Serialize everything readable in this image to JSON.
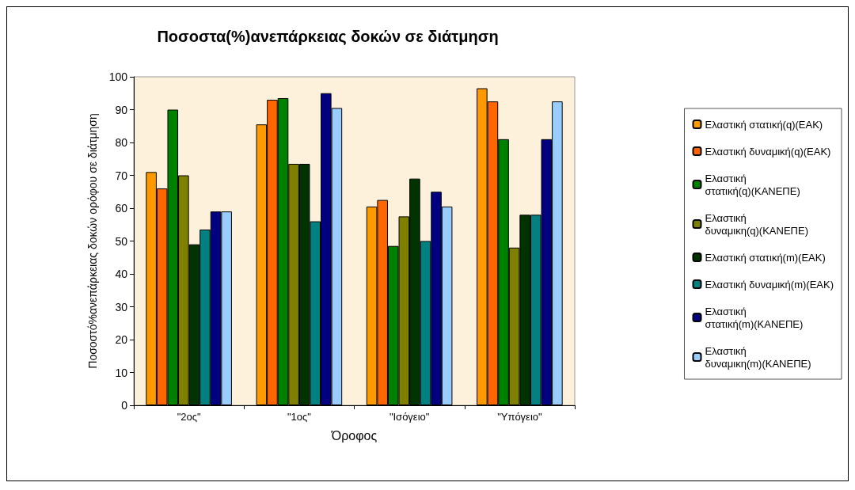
{
  "chart_data": {
    "type": "bar",
    "title": "Ποσοστα(%)ανεπάρκειας δοκών σε διάτμηση",
    "xlabel": "Όροφος",
    "ylabel": "Ποσοστό%ανεπάρκειας δοκών ορόφου σε διάτμηση",
    "categories": [
      "\"2ος\"",
      "\"1ος\"",
      "\"Ισόγειο\"",
      "\"Υπόγειο\""
    ],
    "series": [
      {
        "name": "Ελαστική στατική(q)(ΕΑΚ)",
        "color": "#ff9900",
        "values": [
          71,
          85.5,
          60.5,
          96.5
        ]
      },
      {
        "name": "Ελαστική δυναμική(q)(ΕΑΚ)",
        "color": "#ff6600",
        "values": [
          66,
          93,
          62.5,
          92.5
        ]
      },
      {
        "name": "Ελαστική\nστατική(q)(ΚΑΝΕΠΕ)",
        "color": "#008000",
        "values": [
          90,
          93.5,
          48.5,
          81
        ]
      },
      {
        "name": "Ελαστική\nδυναμικη(q)(ΚΑΝΕΠΕ)",
        "color": "#808000",
        "values": [
          70,
          73.5,
          57.5,
          48
        ]
      },
      {
        "name": "Ελαστική στατική(m)(ΕΑΚ)",
        "color": "#003300",
        "values": [
          49,
          73.5,
          69,
          58
        ]
      },
      {
        "name": "Ελαστική δυναμική(m)(ΕΑΚ)",
        "color": "#008080",
        "values": [
          53.5,
          56,
          50,
          58
        ]
      },
      {
        "name": "Ελαστική\nστατική(m)(ΚΑΝΕΠΕ)",
        "color": "#000080",
        "values": [
          59,
          95,
          65,
          81
        ]
      },
      {
        "name": "Ελαστική\nδυναμικη(m)(ΚΑΝΕΠΕ)",
        "color": "#99ccff",
        "values": [
          59,
          90.5,
          60.5,
          92.5
        ]
      }
    ],
    "ylim": [
      0,
      100
    ],
    "yticks": [
      0,
      10,
      20,
      30,
      40,
      50,
      60,
      70,
      80,
      90,
      100
    ],
    "grid": false,
    "legend": "right"
  }
}
